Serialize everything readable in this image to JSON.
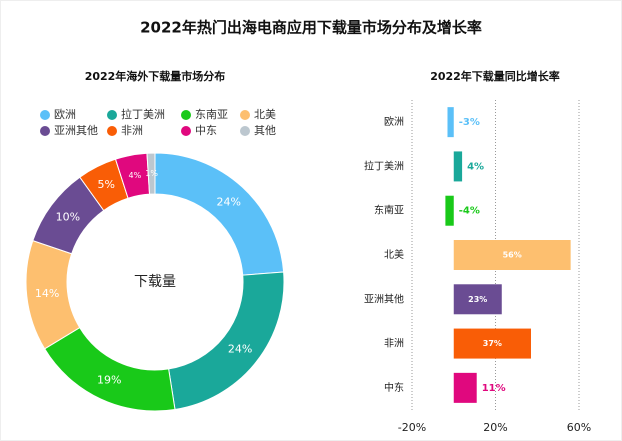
{
  "title": "2022年热门出海电商应用下载量市场分布及增长率",
  "chart_data": [
    {
      "type": "pie",
      "title": "2022年海外下载量市场分布",
      "center_label": "下载量",
      "categories": [
        "欧洲",
        "拉丁美洲",
        "东南亚",
        "北美",
        "亚洲其他",
        "非洲",
        "中东",
        "其他"
      ],
      "values": [
        24,
        24,
        19,
        14,
        10,
        5,
        4,
        1
      ],
      "value_labels": [
        "24%",
        "24%",
        "19%",
        "14%",
        "10%",
        "5%",
        "4%",
        "1%"
      ],
      "colors": [
        "#5bc0f8",
        "#1aa89a",
        "#19c919",
        "#fdbf6f",
        "#6a4c93",
        "#f95d06",
        "#e0087e",
        "#bcc7cf"
      ],
      "legend": "top"
    },
    {
      "type": "hbar",
      "title": "2022年下载量同比增长率",
      "categories": [
        "欧洲",
        "拉丁美洲",
        "东南亚",
        "北美",
        "亚洲其他",
        "非洲",
        "中东"
      ],
      "values": [
        -3,
        4,
        -4,
        56,
        23,
        37,
        11
      ],
      "value_labels": [
        "-3%",
        "4%",
        "-4%",
        "56%",
        "23%",
        "37%",
        "11%"
      ],
      "colors": [
        "#5bc0f8",
        "#1aa89a",
        "#19c919",
        "#fdbf6f",
        "#6a4c93",
        "#f95d06",
        "#e0087e"
      ],
      "xlim": [
        -20,
        60
      ],
      "xticks": [
        {
          "value": -20,
          "label": "-20%"
        },
        {
          "value": 20,
          "label": "20%"
        },
        {
          "value": 60,
          "label": "60%"
        }
      ],
      "grid": true
    }
  ]
}
